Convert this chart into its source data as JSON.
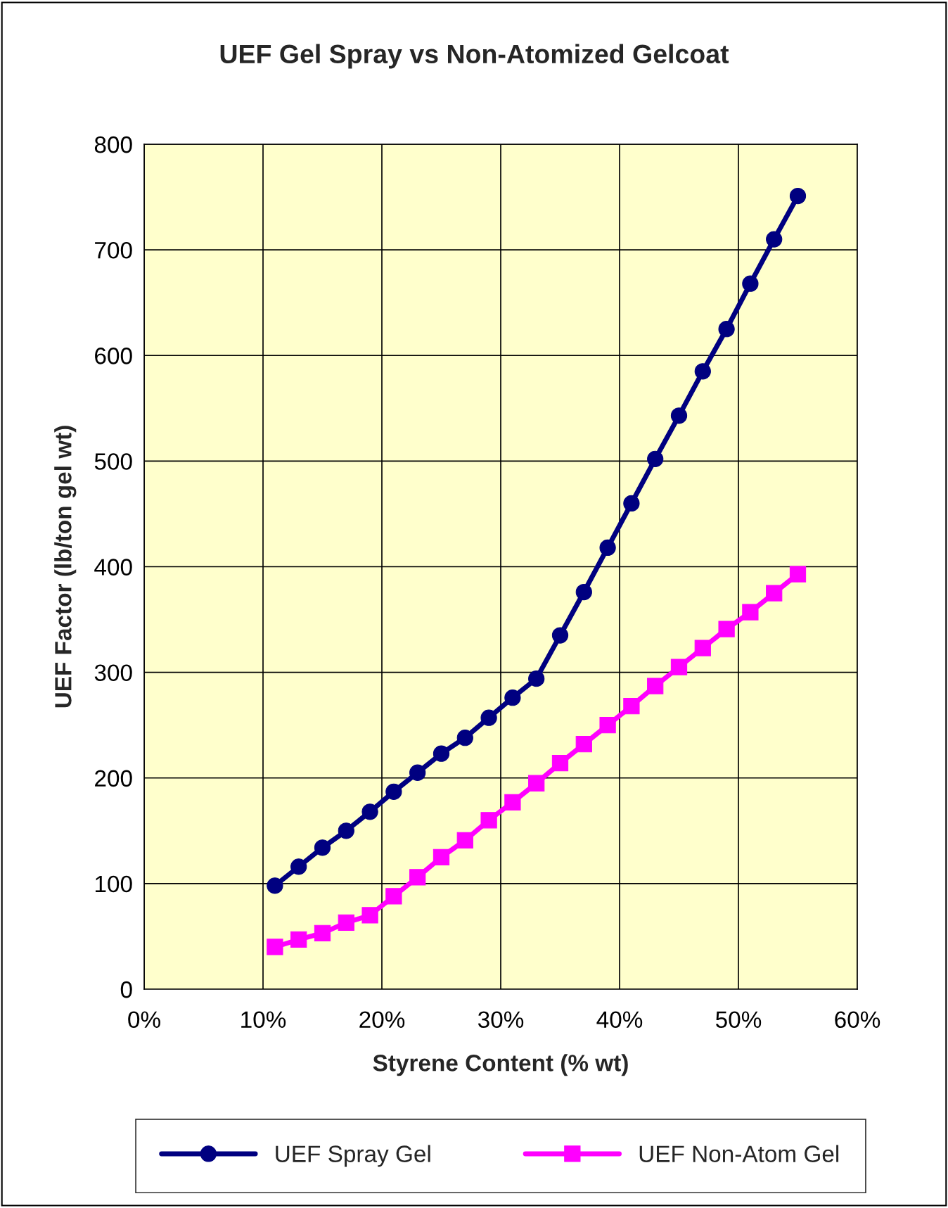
{
  "chart_data": {
    "type": "line",
    "title": "UEF Gel Spray vs Non-Atomized Gelcoat",
    "xlabel": "Styrene Content (% wt)",
    "ylabel": "UEF Factor (lb/ton gel wt)",
    "x": [
      11,
      13,
      15,
      17,
      19,
      21,
      23,
      25,
      27,
      29,
      31,
      33,
      35,
      37,
      39,
      41,
      43,
      45,
      47,
      49,
      51,
      53,
      55
    ],
    "series": [
      {
        "name": "UEF Spray Gel",
        "color": "#000080",
        "marker": "circle",
        "values": [
          98,
          116,
          134,
          150,
          168,
          187,
          205,
          223,
          238,
          257,
          276,
          294,
          335,
          376,
          418,
          460,
          502,
          543,
          585,
          625,
          668,
          710,
          751
        ]
      },
      {
        "name": "UEF Non-Atom Gel",
        "color": "#ff00ff",
        "marker": "square",
        "values": [
          40,
          47,
          53,
          63,
          70,
          88,
          106,
          125,
          141,
          160,
          177,
          195,
          214,
          232,
          250,
          268,
          287,
          305,
          323,
          341,
          357,
          375,
          393
        ]
      }
    ],
    "xlim": [
      0,
      60
    ],
    "xticks": [
      {
        "value": 0,
        "label": "0%"
      },
      {
        "value": 10,
        "label": "10%"
      },
      {
        "value": 20,
        "label": "20%"
      },
      {
        "value": 30,
        "label": "30%"
      },
      {
        "value": 40,
        "label": "40%"
      },
      {
        "value": 50,
        "label": "50%"
      },
      {
        "value": 60,
        "label": "60%"
      }
    ],
    "ylim": [
      0,
      800
    ],
    "yticks": [
      0,
      100,
      200,
      300,
      400,
      500,
      600,
      700,
      800
    ],
    "grid": true,
    "legend": "bottom",
    "line_style": "solid"
  }
}
